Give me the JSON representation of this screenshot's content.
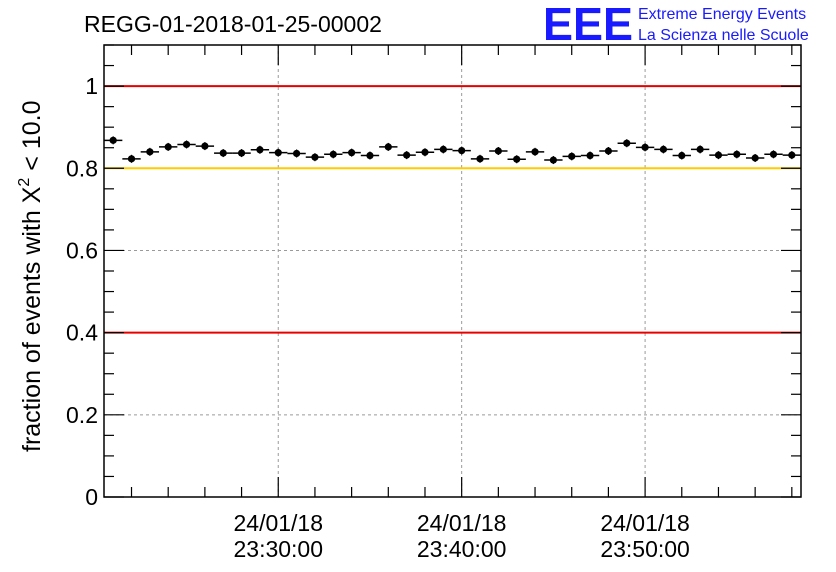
{
  "chart_data": {
    "type": "scatter",
    "title": "REGG-01-2018-01-25-00002",
    "ylabel_prefix": "fraction of events with ",
    "ylabel_symbol": "X",
    "ylabel_sup": "2",
    "ylabel_suffix": " < 10.0",
    "xlabel": "",
    "ylim": [
      0,
      1.1
    ],
    "yticks": [
      {
        "value": 0,
        "label": "0"
      },
      {
        "value": 0.2,
        "label": "0.2"
      },
      {
        "value": 0.4,
        "label": "0.4"
      },
      {
        "value": 0.6,
        "label": "0.6"
      },
      {
        "value": 0.8,
        "label": "0.8"
      },
      {
        "value": 1,
        "label": "1"
      }
    ],
    "xlim_minutes": [
      20.5,
      58.5
    ],
    "xticks": [
      {
        "minute": 30,
        "date": "24/01/18",
        "time": "23:30:00"
      },
      {
        "minute": 40,
        "date": "24/01/18",
        "time": "23:40:00"
      },
      {
        "minute": 50,
        "date": "24/01/18",
        "time": "23:50:00"
      }
    ],
    "grid": true,
    "reference_lines": [
      {
        "y": 1.0,
        "color": "#e60000"
      },
      {
        "y": 0.8,
        "color": "#ffcc00"
      },
      {
        "y": 0.4,
        "color": "#e60000"
      }
    ],
    "points_x_minutes": [
      21,
      22,
      23,
      24,
      25,
      26,
      27,
      28,
      29,
      30,
      31,
      32,
      33,
      34,
      35,
      36,
      37,
      38,
      39,
      40,
      41,
      42,
      43,
      44,
      45,
      46,
      47,
      48,
      49,
      50,
      51,
      52,
      53,
      54,
      55,
      56,
      57,
      58
    ],
    "points_y": [
      0.868,
      0.823,
      0.84,
      0.852,
      0.858,
      0.854,
      0.837,
      0.837,
      0.845,
      0.838,
      0.836,
      0.827,
      0.834,
      0.838,
      0.831,
      0.852,
      0.832,
      0.839,
      0.846,
      0.843,
      0.823,
      0.842,
      0.822,
      0.84,
      0.82,
      0.829,
      0.831,
      0.842,
      0.861,
      0.851,
      0.846,
      0.831,
      0.846,
      0.832,
      0.834,
      0.825,
      0.834,
      0.832
    ],
    "marker_color": "#000000"
  },
  "logo": {
    "mark": "EEE",
    "line1": "Extreme Energy Events",
    "line2": "La Scienza nelle Scuole",
    "color": "#1a1aff"
  }
}
